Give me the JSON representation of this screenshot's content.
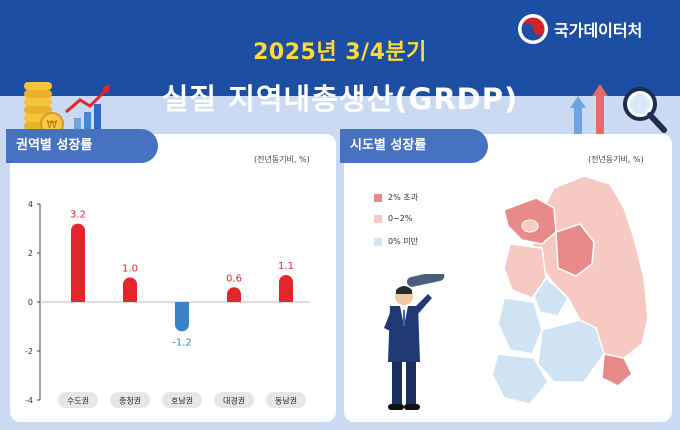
{
  "header": {
    "top_title": "2025년 3/4분기",
    "main_title": "실질 지역내총생산(GRDP)",
    "logo_text": "국가데이터처"
  },
  "left_panel": {
    "tab_label": "권역별 성장률",
    "unit": "(전년동기비, %)"
  },
  "right_panel": {
    "tab_label": "시도별 성장률",
    "unit": "(전년동기비, %)",
    "legend": [
      {
        "label": "2% 초과",
        "color": "#e98a8a"
      },
      {
        "label": "0~2%",
        "color": "#f6c9c2"
      },
      {
        "label": "0% 미만",
        "color": "#cfe3f2"
      }
    ]
  },
  "colors": {
    "positive_bar": "#e2262b",
    "negative_bar": "#3a82c4",
    "header_blue": "#1c4fa3",
    "title_yellow": "#ffd83a"
  },
  "chart_data": {
    "type": "bar",
    "categories": [
      "수도권",
      "충청권",
      "호남권",
      "대경권",
      "동남권"
    ],
    "values": [
      3.2,
      1.0,
      -1.2,
      0.6,
      1.1
    ],
    "value_labels": [
      "3.2",
      "1.0",
      "-1.2",
      "0.6",
      "1.1"
    ],
    "ylim": [
      -4,
      4
    ],
    "yticks": [
      "4",
      "2",
      "0",
      "-2",
      "-4"
    ],
    "title": "",
    "xlabel": "",
    "ylabel": ""
  }
}
